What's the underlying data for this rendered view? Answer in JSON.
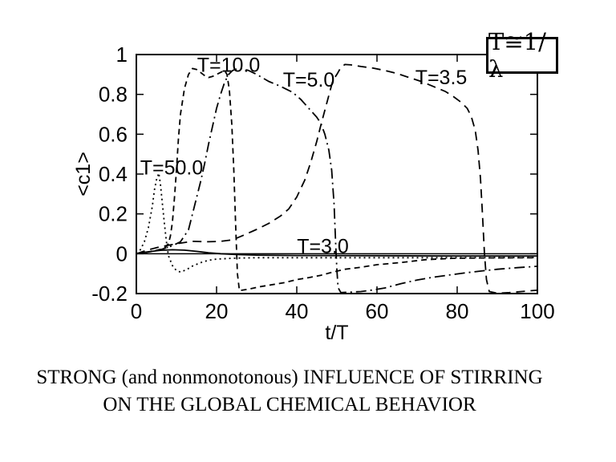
{
  "figure": {
    "legend_label": "T≅1/λ",
    "caption_line1": "STRONG (and nonmonotonous) INFLUENCE OF STIRRING",
    "caption_line2": "ON THE GLOBAL CHEMICAL BEHAVIOR"
  },
  "chart_data": {
    "type": "line",
    "title": "",
    "xlabel": "t/T",
    "ylabel": "<c1>",
    "xlim": [
      0,
      100
    ],
    "ylim": [
      -0.2,
      1.0
    ],
    "grid": false,
    "zero_axis": true,
    "legend": {
      "label": "T≅1/λ",
      "position": "top-right"
    },
    "xticks": [
      {
        "v": 0,
        "label": "0"
      },
      {
        "v": 20,
        "label": "20"
      },
      {
        "v": 40,
        "label": "40"
      },
      {
        "v": 60,
        "label": "60"
      },
      {
        "v": 80,
        "label": "80"
      },
      {
        "v": 100,
        "label": "100"
      }
    ],
    "yticks": [
      {
        "v": -0.2,
        "label": "-0.2"
      },
      {
        "v": 0,
        "label": "0"
      },
      {
        "v": 0.2,
        "label": "0.2"
      },
      {
        "v": 0.4,
        "label": "0.4"
      },
      {
        "v": 0.6,
        "label": "0.6"
      },
      {
        "v": 0.8,
        "label": "0.8"
      },
      {
        "v": 1,
        "label": "1"
      }
    ],
    "series": [
      {
        "name": "T=50.0",
        "style": "dotted",
        "points": [
          [
            0,
            0
          ],
          [
            1,
            0.02
          ],
          [
            2,
            0.06
          ],
          [
            3,
            0.13
          ],
          [
            4,
            0.24
          ],
          [
            4.5,
            0.32
          ],
          [
            5,
            0.37
          ],
          [
            5.6,
            0.405
          ],
          [
            6,
            0.35
          ],
          [
            6.5,
            0.25
          ],
          [
            7,
            0.15
          ],
          [
            7.5,
            0.06
          ],
          [
            8,
            -0.01
          ],
          [
            9,
            -0.06
          ],
          [
            10,
            -0.085
          ],
          [
            11,
            -0.092
          ],
          [
            12.5,
            -0.08
          ],
          [
            14,
            -0.062
          ],
          [
            16,
            -0.045
          ],
          [
            18,
            -0.033
          ],
          [
            20,
            -0.027
          ],
          [
            25,
            -0.022
          ],
          [
            30,
            -0.02
          ],
          [
            40,
            -0.02
          ],
          [
            60,
            -0.02
          ],
          [
            80,
            -0.02
          ],
          [
            100,
            -0.019
          ]
        ]
      },
      {
        "name": "T=10.0",
        "style": "dashed",
        "points": [
          [
            0,
            0
          ],
          [
            2,
            0.005
          ],
          [
            4,
            0.012
          ],
          [
            6,
            0.022
          ],
          [
            7,
            0.03
          ],
          [
            8,
            0.05
          ],
          [
            8.5,
            0.09
          ],
          [
            9,
            0.16
          ],
          [
            9.5,
            0.28
          ],
          [
            10,
            0.42
          ],
          [
            10.5,
            0.58
          ],
          [
            11,
            0.7
          ],
          [
            12,
            0.83
          ],
          [
            13,
            0.9
          ],
          [
            14,
            0.93
          ],
          [
            15,
            0.925
          ],
          [
            16,
            0.91
          ],
          [
            17,
            0.895
          ],
          [
            18,
            0.885
          ],
          [
            19,
            0.89
          ],
          [
            20,
            0.9
          ],
          [
            21,
            0.91
          ],
          [
            22,
            0.92
          ],
          [
            22.6,
            0.9
          ],
          [
            23.2,
            0.82
          ],
          [
            23.8,
            0.65
          ],
          [
            24.3,
            0.42
          ],
          [
            24.8,
            0.12
          ],
          [
            25.2,
            -0.1
          ],
          [
            25.7,
            -0.185
          ],
          [
            28,
            -0.178
          ],
          [
            31,
            -0.165
          ],
          [
            34,
            -0.155
          ],
          [
            37,
            -0.145
          ],
          [
            40,
            -0.13
          ],
          [
            43,
            -0.12
          ],
          [
            46,
            -0.108
          ],
          [
            49,
            -0.092
          ],
          [
            52,
            -0.078
          ],
          [
            56,
            -0.068
          ],
          [
            60,
            -0.055
          ],
          [
            66,
            -0.044
          ],
          [
            72,
            -0.03
          ],
          [
            79,
            -0.023
          ],
          [
            88,
            -0.021
          ],
          [
            100,
            -0.02
          ]
        ]
      },
      {
        "name": "T=5.0",
        "style": "dashdot",
        "points": [
          [
            0,
            0
          ],
          [
            3,
            0.01
          ],
          [
            6,
            0.02
          ],
          [
            9,
            0.04
          ],
          [
            11,
            0.06
          ],
          [
            13,
            0.12
          ],
          [
            14,
            0.2
          ],
          [
            15,
            0.28
          ],
          [
            16,
            0.36
          ],
          [
            17,
            0.45
          ],
          [
            18,
            0.55
          ],
          [
            19,
            0.64
          ],
          [
            20,
            0.73
          ],
          [
            21,
            0.8
          ],
          [
            22,
            0.86
          ],
          [
            23,
            0.9
          ],
          [
            24,
            0.92
          ],
          [
            25,
            0.928
          ],
          [
            26,
            0.93
          ],
          [
            28,
            0.92
          ],
          [
            30,
            0.9
          ],
          [
            33,
            0.865
          ],
          [
            36,
            0.84
          ],
          [
            39,
            0.81
          ],
          [
            41,
            0.775
          ],
          [
            43,
            0.73
          ],
          [
            45,
            0.685
          ],
          [
            46,
            0.655
          ],
          [
            47,
            0.6
          ],
          [
            48,
            0.52
          ],
          [
            48.7,
            0.42
          ],
          [
            49.3,
            0.25
          ],
          [
            49.7,
            0.05
          ],
          [
            50,
            -0.08
          ],
          [
            50.3,
            -0.17
          ],
          [
            51,
            -0.195
          ],
          [
            53,
            -0.193
          ],
          [
            56,
            -0.19
          ],
          [
            59,
            -0.182
          ],
          [
            62,
            -0.172
          ],
          [
            66,
            -0.15
          ],
          [
            70,
            -0.132
          ],
          [
            74,
            -0.118
          ],
          [
            78,
            -0.107
          ],
          [
            82,
            -0.096
          ],
          [
            86,
            -0.087
          ],
          [
            90,
            -0.078
          ],
          [
            95,
            -0.07
          ],
          [
            100,
            -0.063
          ]
        ]
      },
      {
        "name": "T=3.5",
        "style": "longdash",
        "points": [
          [
            0,
            0
          ],
          [
            3,
            0.02
          ],
          [
            6,
            0.035
          ],
          [
            10,
            0.05
          ],
          [
            14,
            0.062
          ],
          [
            18,
            0.06
          ],
          [
            21,
            0.062
          ],
          [
            24,
            0.07
          ],
          [
            27,
            0.095
          ],
          [
            30,
            0.122
          ],
          [
            33,
            0.152
          ],
          [
            36,
            0.19
          ],
          [
            38,
            0.225
          ],
          [
            40,
            0.285
          ],
          [
            42,
            0.37
          ],
          [
            43.5,
            0.46
          ],
          [
            45,
            0.565
          ],
          [
            46,
            0.645
          ],
          [
            47,
            0.72
          ],
          [
            48,
            0.795
          ],
          [
            49,
            0.87
          ],
          [
            50,
            0.9
          ],
          [
            51,
            0.935
          ],
          [
            52,
            0.95
          ],
          [
            53.5,
            0.948
          ],
          [
            56,
            0.94
          ],
          [
            59,
            0.932
          ],
          [
            62,
            0.92
          ],
          [
            65,
            0.905
          ],
          [
            68,
            0.885
          ],
          [
            71,
            0.865
          ],
          [
            74,
            0.84
          ],
          [
            77,
            0.815
          ],
          [
            79,
            0.79
          ],
          [
            81,
            0.76
          ],
          [
            82.5,
            0.73
          ],
          [
            83.5,
            0.69
          ],
          [
            84.5,
            0.62
          ],
          [
            85.2,
            0.52
          ],
          [
            85.8,
            0.38
          ],
          [
            86.3,
            0.2
          ],
          [
            86.8,
            0
          ],
          [
            87.3,
            -0.13
          ],
          [
            88,
            -0.19
          ],
          [
            90,
            -0.198
          ],
          [
            93,
            -0.195
          ],
          [
            96,
            -0.19
          ],
          [
            100,
            -0.183
          ]
        ]
      },
      {
        "name": "T=3.0",
        "style": "solid",
        "points": [
          [
            0,
            0
          ],
          [
            3,
            0.01
          ],
          [
            6,
            0.017
          ],
          [
            9,
            0.02
          ],
          [
            12,
            0.018
          ],
          [
            15,
            0.012
          ],
          [
            18,
            0.005
          ],
          [
            21,
            0
          ],
          [
            25,
            -0.004
          ],
          [
            30,
            -0.007
          ],
          [
            40,
            -0.009
          ],
          [
            60,
            -0.01
          ],
          [
            80,
            -0.011
          ],
          [
            100,
            -0.011
          ]
        ]
      }
    ],
    "annotations": [
      {
        "text": "T=10.0",
        "x": 23,
        "y": 0.95
      },
      {
        "text": "T=5.0",
        "x": 43,
        "y": 0.875
      },
      {
        "text": "T=3.5",
        "x": 76,
        "y": 0.887
      },
      {
        "text": "T=50.0",
        "x": 8.8,
        "y": 0.435
      },
      {
        "text": "T=3.0",
        "x": 46.5,
        "y": 0.04
      }
    ]
  }
}
